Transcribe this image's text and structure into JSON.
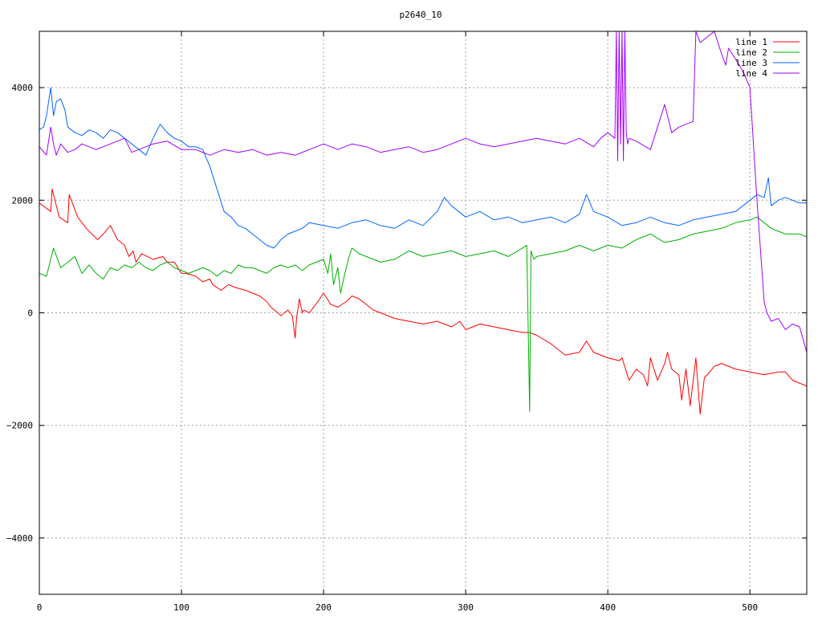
{
  "chart_data": {
    "type": "line",
    "title": "p2640_10",
    "xlabel": "",
    "ylabel": "",
    "xlim": [
      0,
      540
    ],
    "ylim": [
      -5000,
      5000
    ],
    "xticks": [
      0,
      100,
      200,
      300,
      400,
      500
    ],
    "yticks": [
      -4000,
      -2000,
      0,
      2000,
      4000
    ],
    "xtick_labels": [
      "0",
      "100",
      "200",
      "300",
      "400",
      "500"
    ],
    "ytick_labels": [
      "−4000",
      "−2000",
      "0",
      "2000",
      "4000"
    ],
    "grid": true,
    "legend_position": "top-right",
    "series": [
      {
        "name": "line 1",
        "color": "#ff0000",
        "x": [
          0,
          8,
          9,
          14,
          20,
          21,
          27,
          33,
          41,
          45,
          50,
          55,
          60,
          63,
          66,
          68,
          72,
          80,
          87,
          90,
          95,
          100,
          103,
          110,
          115,
          120,
          122,
          128,
          133,
          138,
          145,
          150,
          155,
          160,
          163,
          170,
          175,
          178,
          180,
          181,
          183,
          185,
          186,
          190,
          196,
          200,
          205,
          210,
          216,
          220,
          225,
          235,
          240,
          250,
          260,
          270,
          280,
          290,
          296,
          300,
          310,
          320,
          330,
          340,
          345,
          350,
          360,
          370,
          380,
          385,
          390,
          400,
          408,
          410,
          415,
          420,
          425,
          428,
          430,
          435,
          440,
          442,
          445,
          450,
          452,
          455,
          458,
          462,
          465,
          468,
          470,
          475,
          480,
          490,
          500,
          510,
          520,
          525,
          530,
          535,
          540
        ],
        "y": [
          1950,
          1800,
          2200,
          1700,
          1600,
          2100,
          1700,
          1500,
          1300,
          1400,
          1550,
          1300,
          1200,
          1000,
          1100,
          900,
          1050,
          950,
          1000,
          900,
          900,
          700,
          700,
          650,
          550,
          600,
          500,
          400,
          500,
          450,
          400,
          350,
          300,
          200,
          100,
          -50,
          50,
          -50,
          -450,
          -100,
          250,
          0,
          50,
          0,
          200,
          350,
          150,
          100,
          200,
          300,
          250,
          50,
          0,
          -100,
          -150,
          -200,
          -150,
          -250,
          -150,
          -300,
          -200,
          -250,
          -300,
          -350,
          -350,
          -400,
          -550,
          -750,
          -700,
          -500,
          -700,
          -800,
          -850,
          -800,
          -1200,
          -1000,
          -1100,
          -1300,
          -800,
          -1200,
          -900,
          -700,
          -1000,
          -1100,
          -1550,
          -1000,
          -1650,
          -800,
          -1800,
          -1150,
          -1100,
          -950,
          -900,
          -1000,
          -1050,
          -1100,
          -1050,
          -1050,
          -1200,
          -1250,
          -1300
        ]
      },
      {
        "name": "line 2",
        "color": "#00b000",
        "x": [
          0,
          5,
          10,
          15,
          20,
          25,
          30,
          35,
          40,
          45,
          50,
          55,
          60,
          65,
          70,
          75,
          80,
          85,
          90,
          95,
          100,
          105,
          110,
          115,
          120,
          125,
          130,
          135,
          140,
          145,
          150,
          155,
          160,
          165,
          170,
          175,
          180,
          185,
          190,
          195,
          200,
          203,
          205,
          207,
          210,
          212,
          215,
          218,
          220,
          225,
          230,
          240,
          250,
          260,
          270,
          280,
          290,
          300,
          310,
          320,
          330,
          340,
          343,
          345,
          346,
          348,
          350,
          360,
          370,
          380,
          390,
          400,
          410,
          420,
          430,
          440,
          450,
          460,
          470,
          480,
          490,
          500,
          505,
          510,
          515,
          520,
          525,
          530,
          535,
          540
        ],
        "y": [
          700,
          650,
          1150,
          800,
          900,
          1000,
          700,
          850,
          700,
          600,
          800,
          750,
          850,
          800,
          900,
          800,
          750,
          850,
          900,
          800,
          750,
          700,
          750,
          800,
          750,
          650,
          750,
          700,
          850,
          800,
          800,
          750,
          700,
          800,
          850,
          800,
          850,
          750,
          850,
          900,
          950,
          700,
          1050,
          500,
          800,
          350,
          700,
          1000,
          1150,
          1050,
          1000,
          900,
          950,
          1100,
          1000,
          1050,
          1100,
          1000,
          1050,
          1100,
          1000,
          1150,
          1200,
          -1750,
          1100,
          950,
          1000,
          1050,
          1100,
          1200,
          1100,
          1200,
          1150,
          1300,
          1400,
          1250,
          1300,
          1400,
          1450,
          1500,
          1600,
          1650,
          1700,
          1600,
          1500,
          1450,
          1400,
          1400,
          1400,
          1350
        ]
      },
      {
        "name": "line 3",
        "color": "#0066ff",
        "x": [
          0,
          3,
          5,
          8,
          10,
          12,
          15,
          18,
          20,
          25,
          30,
          35,
          40,
          45,
          50,
          55,
          60,
          65,
          70,
          75,
          80,
          85,
          90,
          95,
          100,
          105,
          110,
          115,
          120,
          125,
          130,
          135,
          140,
          145,
          150,
          155,
          160,
          165,
          170,
          175,
          180,
          185,
          190,
          200,
          210,
          220,
          230,
          240,
          250,
          260,
          270,
          280,
          285,
          290,
          300,
          310,
          320,
          330,
          340,
          350,
          360,
          370,
          380,
          385,
          390,
          400,
          410,
          420,
          430,
          440,
          450,
          460,
          470,
          480,
          490,
          500,
          505,
          510,
          513,
          515,
          520,
          525,
          530,
          535,
          540
        ],
        "y": [
          3250,
          3300,
          3500,
          4000,
          3500,
          3750,
          3800,
          3600,
          3300,
          3200,
          3150,
          3250,
          3200,
          3100,
          3250,
          3200,
          3100,
          3000,
          2900,
          2800,
          3100,
          3350,
          3200,
          3100,
          3050,
          2950,
          2950,
          2900,
          2600,
          2200,
          1800,
          1700,
          1550,
          1500,
          1400,
          1300,
          1200,
          1150,
          1300,
          1400,
          1450,
          1500,
          1600,
          1550,
          1500,
          1600,
          1650,
          1550,
          1500,
          1650,
          1550,
          1800,
          2050,
          1900,
          1700,
          1800,
          1650,
          1700,
          1600,
          1650,
          1700,
          1600,
          1750,
          2100,
          1800,
          1700,
          1550,
          1600,
          1700,
          1600,
          1550,
          1650,
          1700,
          1750,
          1800,
          2000,
          2100,
          2050,
          2400,
          1900,
          2000,
          2050,
          2000,
          1950,
          1950
        ]
      },
      {
        "name": "line 4",
        "color": "#a000ff",
        "x": [
          0,
          5,
          8,
          10,
          12,
          15,
          20,
          25,
          30,
          40,
          50,
          60,
          65,
          70,
          80,
          90,
          100,
          110,
          120,
          130,
          140,
          150,
          160,
          170,
          180,
          190,
          200,
          210,
          220,
          230,
          240,
          250,
          260,
          270,
          280,
          290,
          300,
          310,
          320,
          330,
          340,
          350,
          360,
          370,
          380,
          390,
          395,
          400,
          405,
          406,
          407,
          408,
          409,
          410,
          411,
          412,
          413,
          414,
          415,
          420,
          430,
          440,
          445,
          450,
          455,
          460,
          462,
          465,
          470,
          475,
          480,
          483,
          485,
          490,
          495,
          500,
          505,
          510,
          512,
          515,
          520,
          525,
          530,
          535,
          540
        ],
        "y": [
          2950,
          2800,
          3300,
          3000,
          2800,
          3000,
          2850,
          2900,
          3000,
          2900,
          3000,
          3100,
          2850,
          2900,
          3000,
          3050,
          2900,
          2900,
          2800,
          2900,
          2850,
          2900,
          2800,
          2850,
          2800,
          2900,
          3000,
          2900,
          3000,
          2950,
          2850,
          2900,
          2950,
          2850,
          2900,
          3000,
          3100,
          3000,
          2950,
          3000,
          3050,
          3100,
          3050,
          3000,
          3100,
          2950,
          3100,
          3200,
          3100,
          5000,
          2700,
          5000,
          3000,
          5000,
          2700,
          5000,
          3200,
          3000,
          3100,
          3050,
          2900,
          3700,
          3200,
          3300,
          3350,
          3400,
          5000,
          4800,
          4900,
          5000,
          4600,
          4400,
          4700,
          4500,
          4300,
          4000,
          2000,
          200,
          0,
          -150,
          -100,
          -300,
          -200,
          -250,
          -700
        ]
      }
    ]
  }
}
